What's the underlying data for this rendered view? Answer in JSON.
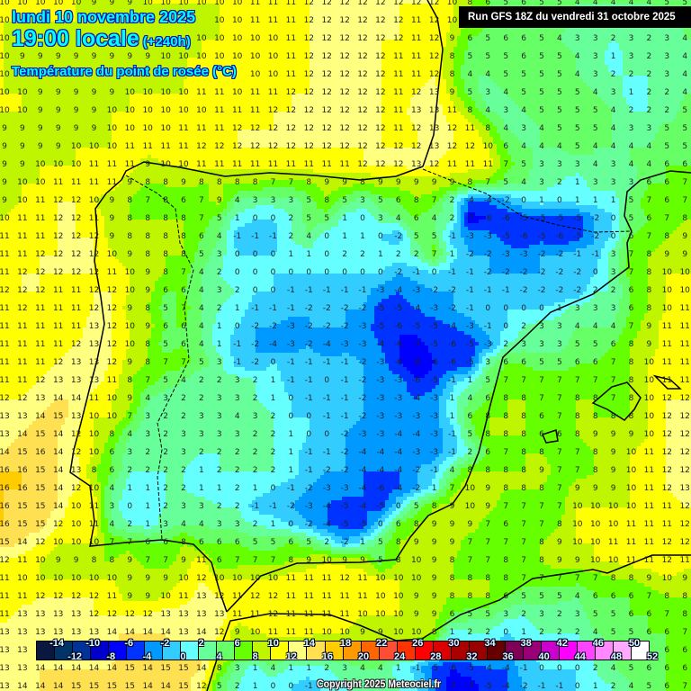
{
  "header": {
    "date": "lundi 10 novembre 2025",
    "time": "19:00 locale",
    "lead": "(+240h)",
    "parameter": "Température du point de rosée (°C)",
    "run": "Run GFS 18Z du vendredi 31 octobre 2025"
  },
  "copyright": "Copyright 2025 Meteociel.fr",
  "legend": {
    "unit": "°C",
    "colors": [
      "#0a1840",
      "#003366",
      "#003399",
      "#0000cc",
      "#0000ff",
      "#0033ff",
      "#0099ff",
      "#33ccff",
      "#66ffff",
      "#66ff99",
      "#66ff66",
      "#66ff00",
      "#c0f500",
      "#ffff00",
      "#ffff80",
      "#ffe050",
      "#ffcc00",
      "#ff9900",
      "#ff6600",
      "#ff4d33",
      "#ff3300",
      "#ff0000",
      "#dd0000",
      "#aa0000",
      "#990000",
      "#660000",
      "#800055",
      "#990077",
      "#cc00cc",
      "#ff00ff",
      "#ff44ff",
      "#ff88ff",
      "#ffaaff",
      "#ffffff"
    ],
    "top_labels": [
      "-14",
      "-10",
      "-6",
      "-2",
      "2",
      "6",
      "10",
      "14",
      "18",
      "22",
      "26",
      "30",
      "34",
      "38",
      "42",
      "46",
      "50"
    ],
    "bottom_labels": [
      "-12",
      "-8",
      "-4",
      "0",
      "4",
      "8",
      "12",
      "16",
      "20",
      "24",
      "28",
      "32",
      "36",
      "40",
      "44",
      "48",
      "52"
    ]
  },
  "grid": {
    "rows": [
      [
        10,
        10,
        10,
        10,
        10,
        9,
        9,
        9,
        10,
        10,
        10,
        10,
        10,
        10,
        11,
        11,
        11,
        12,
        12,
        12,
        12,
        12,
        12,
        12,
        12,
        10,
        8,
        6,
        5,
        6,
        5,
        5,
        4,
        4,
        4,
        4,
        4,
        5,
        5
      ],
      [
        10,
        null,
        null,
        null,
        null,
        null,
        null,
        null,
        null,
        null,
        null,
        null,
        10,
        10,
        11,
        11,
        11,
        12,
        12,
        12,
        12,
        12,
        12,
        11,
        12,
        10,
        null,
        null,
        null,
        null,
        null,
        null,
        null,
        null,
        null,
        null,
        null,
        null,
        null
      ],
      [
        10,
        null,
        null,
        null,
        null,
        null,
        null,
        null,
        null,
        null,
        null,
        10,
        10,
        10,
        10,
        10,
        11,
        12,
        12,
        12,
        12,
        12,
        12,
        11,
        12,
        9,
        6,
        5,
        6,
        6,
        5,
        4,
        3,
        3,
        2,
        3,
        2,
        3,
        4
      ],
      [
        10,
        9,
        9,
        9,
        9,
        9,
        9,
        9,
        9,
        10,
        10,
        10,
        10,
        10,
        10,
        10,
        11,
        12,
        12,
        12,
        12,
        12,
        11,
        11,
        12,
        8,
        5,
        5,
        5,
        6,
        5,
        5,
        4,
        3,
        1,
        3,
        2,
        3,
        4
      ],
      [
        10,
        null,
        null,
        null,
        null,
        null,
        null,
        null,
        null,
        null,
        null,
        null,
        null,
        null,
        10,
        10,
        11,
        12,
        12,
        12,
        12,
        12,
        11,
        11,
        12,
        8,
        4,
        4,
        5,
        5,
        5,
        5,
        4,
        3,
        2,
        2,
        2,
        3,
        4
      ],
      [
        10,
        10,
        9,
        9,
        9,
        9,
        9,
        10,
        10,
        10,
        10,
        11,
        11,
        10,
        11,
        11,
        12,
        12,
        12,
        12,
        12,
        12,
        11,
        12,
        13,
        9,
        5,
        3,
        4,
        5,
        5,
        5,
        5,
        4,
        3,
        1,
        2,
        2,
        4
      ],
      [
        10,
        10,
        9,
        9,
        9,
        9,
        10,
        10,
        10,
        10,
        10,
        10,
        11,
        11,
        11,
        12,
        12,
        12,
        12,
        12,
        12,
        12,
        11,
        13,
        13,
        11,
        8,
        4,
        3,
        4,
        5,
        5,
        5,
        5,
        4,
        2,
        2,
        2,
        5
      ],
      [
        9,
        9,
        9,
        9,
        9,
        9,
        10,
        10,
        10,
        10,
        11,
        11,
        11,
        12,
        12,
        12,
        12,
        12,
        12,
        12,
        12,
        12,
        11,
        12,
        13,
        12,
        11,
        8,
        4,
        3,
        4,
        5,
        5,
        5,
        4,
        3,
        3,
        5,
        5
      ],
      [
        9,
        9,
        9,
        9,
        10,
        10,
        10,
        11,
        11,
        11,
        11,
        12,
        12,
        12,
        12,
        12,
        12,
        12,
        12,
        12,
        12,
        12,
        12,
        12,
        13,
        12,
        12,
        10,
        6,
        4,
        4,
        4,
        5,
        4,
        4,
        4,
        4,
        5,
        5
      ],
      [
        9,
        9,
        10,
        10,
        10,
        11,
        11,
        11,
        9,
        10,
        10,
        11,
        11,
        11,
        11,
        11,
        11,
        11,
        11,
        11,
        12,
        12,
        12,
        13,
        12,
        11,
        11,
        11,
        7,
        5,
        3,
        3,
        3,
        4,
        3,
        4,
        4,
        6,
        6
      ],
      [
        9,
        10,
        10,
        11,
        11,
        11,
        11,
        9,
        8,
        8,
        9,
        8,
        8,
        8,
        8,
        7,
        7,
        8,
        9,
        9,
        8,
        9,
        9,
        9,
        9,
        9,
        8,
        7,
        5,
        4,
        3,
        2,
        1,
        3,
        3,
        3,
        6,
        6,
        7
      ],
      [
        9,
        10,
        11,
        12,
        12,
        10,
        9,
        8,
        7,
        8,
        6,
        7,
        9,
        4,
        3,
        3,
        3,
        5,
        8,
        5,
        3,
        5,
        6,
        8,
        7,
        2,
        -4,
        -4,
        -2,
        0,
        1,
        0,
        1,
        1,
        1,
        5,
        7,
        6,
        7
      ],
      [
        10,
        11,
        11,
        12,
        12,
        11,
        9,
        8,
        8,
        8,
        8,
        7,
        5,
        1,
        0,
        0,
        2,
        5,
        5,
        1,
        0,
        3,
        4,
        6,
        4,
        2,
        -7,
        -6,
        -6,
        -5,
        -5,
        -5,
        -5,
        -2,
        0,
        5,
        6,
        7,
        8
      ],
      [
        11,
        11,
        11,
        12,
        12,
        12,
        9,
        8,
        8,
        8,
        8,
        6,
        4,
        -1,
        -1,
        -1,
        2,
        4,
        0,
        1,
        1,
        0,
        -2,
        5,
        5,
        -1,
        -3,
        -3,
        -5,
        -6,
        -5,
        -6,
        -5,
        -2,
        0,
        6,
        7,
        8,
        9
      ],
      [
        11,
        11,
        12,
        12,
        12,
        12,
        10,
        9,
        8,
        8,
        8,
        5,
        3,
        0,
        0,
        0,
        1,
        1,
        0,
        2,
        2,
        1,
        2,
        2,
        7,
        1,
        -2,
        -2,
        -3,
        -3,
        -2,
        -2,
        -1,
        -1,
        3,
        7,
        8,
        9,
        9
      ],
      [
        11,
        12,
        12,
        12,
        12,
        12,
        11,
        10,
        9,
        8,
        7,
        4,
        2,
        0,
        0,
        0,
        0,
        0,
        0,
        0,
        0,
        0,
        -2,
        -1,
        0,
        -1,
        -1,
        -2,
        -2,
        -2,
        -2,
        -2,
        -2,
        0,
        3,
        7,
        8,
        10,
        10
      ],
      [
        12,
        12,
        12,
        11,
        11,
        12,
        12,
        10,
        9,
        6,
        6,
        4,
        3,
        2,
        0,
        0,
        -1,
        -1,
        -1,
        -1,
        -1,
        -3,
        -4,
        -3,
        -2,
        -2,
        -1,
        -1,
        -1,
        -2,
        -2,
        -2,
        -2,
        2,
        2,
        6,
        8,
        10,
        10
      ],
      [
        11,
        12,
        11,
        11,
        11,
        12,
        12,
        9,
        8,
        5,
        7,
        4,
        2,
        1,
        -1,
        -1,
        -1,
        -2,
        -2,
        -2,
        -2,
        -5,
        -5,
        -4,
        -3,
        -2,
        -1,
        0,
        0,
        0,
        0,
        1,
        3,
        3,
        3,
        6,
        8,
        10,
        11
      ],
      [
        11,
        11,
        11,
        11,
        11,
        13,
        12,
        10,
        9,
        6,
        6,
        4,
        1,
        0,
        -2,
        -2,
        -3,
        -2,
        -2,
        -2,
        -3,
        -5,
        -6,
        -5,
        -5,
        -4,
        -3,
        -1,
        0,
        2,
        3,
        3,
        4,
        4,
        4,
        7,
        9,
        11,
        11
      ],
      [
        11,
        11,
        11,
        11,
        12,
        13,
        12,
        10,
        8,
        5,
        6,
        4,
        1,
        -1,
        -2,
        -4,
        -3,
        -2,
        -4,
        -3,
        -3,
        -4,
        -6,
        -7,
        -5,
        -6,
        -5,
        -3,
        2,
        3,
        3,
        3,
        5,
        5,
        6,
        8,
        9,
        11,
        11
      ],
      [
        11,
        11,
        11,
        12,
        13,
        13,
        12,
        9,
        8,
        7,
        7,
        5,
        3,
        -1,
        -2,
        0,
        -1,
        -1,
        -1,
        -1,
        -2,
        -3,
        -6,
        -8,
        -6,
        -6,
        -5,
        3,
        6,
        6,
        5,
        5,
        6,
        6,
        7,
        8,
        10,
        11,
        11
      ],
      [
        11,
        11,
        12,
        13,
        13,
        13,
        11,
        8,
        7,
        5,
        4,
        2,
        2,
        3,
        2,
        1,
        -1,
        -1,
        0,
        -1,
        -2,
        -3,
        -3,
        -6,
        -5,
        -1,
        1,
        5,
        7,
        7,
        7,
        7,
        7,
        7,
        7,
        8,
        10,
        11,
        11
      ],
      [
        12,
        12,
        13,
        14,
        14,
        11,
        10,
        9,
        4,
        3,
        2,
        2,
        3,
        3,
        2,
        1,
        0,
        -1,
        -1,
        -1,
        -2,
        -3,
        -3,
        -4,
        -3,
        1,
        4,
        6,
        8,
        8,
        7,
        7,
        8,
        8,
        7,
        8,
        10,
        12,
        12
      ],
      [
        13,
        13,
        14,
        15,
        13,
        10,
        10,
        7,
        3,
        2,
        2,
        3,
        3,
        4,
        3,
        2,
        0,
        0,
        -1,
        -1,
        -2,
        -3,
        -3,
        -3,
        -3,
        1,
        6,
        8,
        8,
        8,
        6,
        7,
        8,
        8,
        8,
        8,
        10,
        12,
        12
      ],
      [
        13,
        14,
        15,
        14,
        12,
        10,
        8,
        4,
        3,
        2,
        3,
        3,
        3,
        3,
        2,
        2,
        1,
        0,
        0,
        -2,
        -3,
        -3,
        -4,
        -4,
        -3,
        -1,
        5,
        8,
        8,
        8,
        6,
        6,
        8,
        9,
        9,
        9,
        10,
        12,
        12
      ],
      [
        14,
        15,
        16,
        14,
        12,
        10,
        6,
        3,
        2,
        2,
        3,
        2,
        2,
        2,
        2,
        2,
        1,
        -1,
        -1,
        -2,
        -4,
        -4,
        -4,
        -3,
        -3,
        -1,
        2,
        6,
        7,
        8,
        8,
        7,
        7,
        8,
        9,
        10,
        11,
        12,
        12
      ],
      [
        16,
        16,
        15,
        14,
        13,
        8,
        6,
        2,
        2,
        2,
        2,
        1,
        2,
        2,
        2,
        2,
        1,
        -1,
        -2,
        -2,
        -4,
        -4,
        -4,
        -2,
        -1,
        4,
        8,
        8,
        8,
        8,
        9,
        7,
        7,
        8,
        9,
        10,
        11,
        12,
        12
      ],
      [
        16,
        16,
        15,
        14,
        12,
        10,
        4,
        1,
        1,
        2,
        2,
        1,
        1,
        2,
        1,
        0,
        -1,
        -2,
        -3,
        -3,
        -4,
        -6,
        -4,
        -2,
        1,
        7,
        10,
        9,
        8,
        8,
        8,
        7,
        9,
        9,
        9,
        10,
        11,
        12,
        13
      ],
      [
        16,
        15,
        15,
        14,
        10,
        11,
        3,
        0,
        1,
        2,
        3,
        3,
        2,
        2,
        -1,
        -1,
        -2,
        -3,
        -4,
        -5,
        -4,
        -5,
        0,
        5,
        8,
        9,
        10,
        9,
        7,
        7,
        7,
        7,
        10,
        10,
        10,
        10,
        11,
        11,
        12
      ],
      [
        16,
        15,
        15,
        12,
        10,
        11,
        4,
        2,
        1,
        3,
        4,
        4,
        3,
        3,
        2,
        1,
        0,
        -2,
        -4,
        -5,
        -5,
        0,
        6,
        8,
        9,
        9,
        9,
        7,
        6,
        7,
        7,
        8,
        10,
        10,
        10,
        11,
        11,
        11,
        12
      ],
      [
        15,
        14,
        12,
        10,
        10,
        10,
        7,
        7,
        6,
        6,
        8,
        6,
        6,
        6,
        5,
        5,
        6,
        5,
        2,
        -2,
        1,
        5,
        8,
        9,
        9,
        9,
        7,
        7,
        7,
        7,
        8,
        9,
        10,
        10,
        11,
        11,
        11,
        12,
        12
      ],
      [
        12,
        11,
        10,
        9,
        9,
        8,
        8,
        9,
        7,
        7,
        9,
        11,
        6,
        7,
        7,
        7,
        8,
        9,
        10,
        9,
        9,
        5,
        8,
        10,
        9,
        8,
        7,
        7,
        8,
        7,
        8,
        9,
        9,
        10,
        10,
        11,
        11,
        12,
        11
      ],
      [
        11,
        10,
        10,
        10,
        10,
        10,
        10,
        9,
        9,
        9,
        10,
        12,
        10,
        10,
        10,
        10,
        11,
        11,
        11,
        12,
        11,
        10,
        10,
        10,
        9,
        8,
        8,
        8,
        8,
        7,
        7,
        7,
        7,
        7,
        8,
        8,
        9,
        10,
        9
      ],
      [
        11,
        11,
        12,
        12,
        12,
        12,
        11,
        9,
        9,
        10,
        11,
        13,
        12,
        11,
        12,
        12,
        11,
        11,
        11,
        11,
        11,
        10,
        10,
        9,
        9,
        8,
        8,
        8,
        6,
        5,
        5,
        5,
        4,
        6,
        6,
        6,
        7,
        8,
        8
      ],
      [
        11,
        13,
        13,
        13,
        13,
        12,
        12,
        12,
        12,
        13,
        13,
        13,
        13,
        11,
        11,
        12,
        11,
        11,
        11,
        11,
        10,
        10,
        10,
        9,
        9,
        6,
        5,
        5,
        3,
        2,
        3,
        2,
        3,
        5,
        5,
        6,
        6,
        7,
        8
      ],
      [
        13,
        13,
        13,
        13,
        13,
        13,
        14,
        14,
        14,
        14,
        13,
        14,
        12,
        9,
        10,
        11,
        11,
        11,
        10,
        10,
        9,
        9,
        10,
        10,
        8,
        1,
        2,
        2,
        0,
        1,
        2,
        2,
        2,
        4,
        5,
        5,
        6,
        6,
        7
      ],
      [
        13,
        13,
        null,
        null,
        null,
        null,
        null,
        null,
        null,
        null,
        null,
        null,
        null,
        null,
        null,
        null,
        null,
        null,
        null,
        null,
        null,
        null,
        null,
        null,
        null,
        null,
        null,
        null,
        null,
        null,
        null,
        null,
        null,
        null,
        null,
        null,
        null,
        6,
        6
      ],
      [
        13,
        13,
        14,
        14,
        14,
        14,
        14,
        15,
        14,
        15,
        15,
        14,
        8,
        3,
        1,
        4,
        1,
        1,
        2,
        3,
        4,
        4,
        1,
        -1,
        -5,
        -6,
        -5,
        -4,
        -4,
        -1,
        0,
        0,
        0,
        2,
        4,
        5,
        6,
        6,
        6
      ],
      [
        13,
        14,
        14,
        14,
        15,
        15,
        15,
        15,
        14,
        14,
        15,
        12,
        5,
        2,
        1,
        0,
        0,
        -1,
        null,
        null,
        null,
        null,
        null,
        null,
        null,
        -7,
        -7,
        -5,
        -4,
        -2,
        -1,
        -1,
        0,
        1,
        2,
        4,
        5,
        6,
        7
      ]
    ]
  }
}
